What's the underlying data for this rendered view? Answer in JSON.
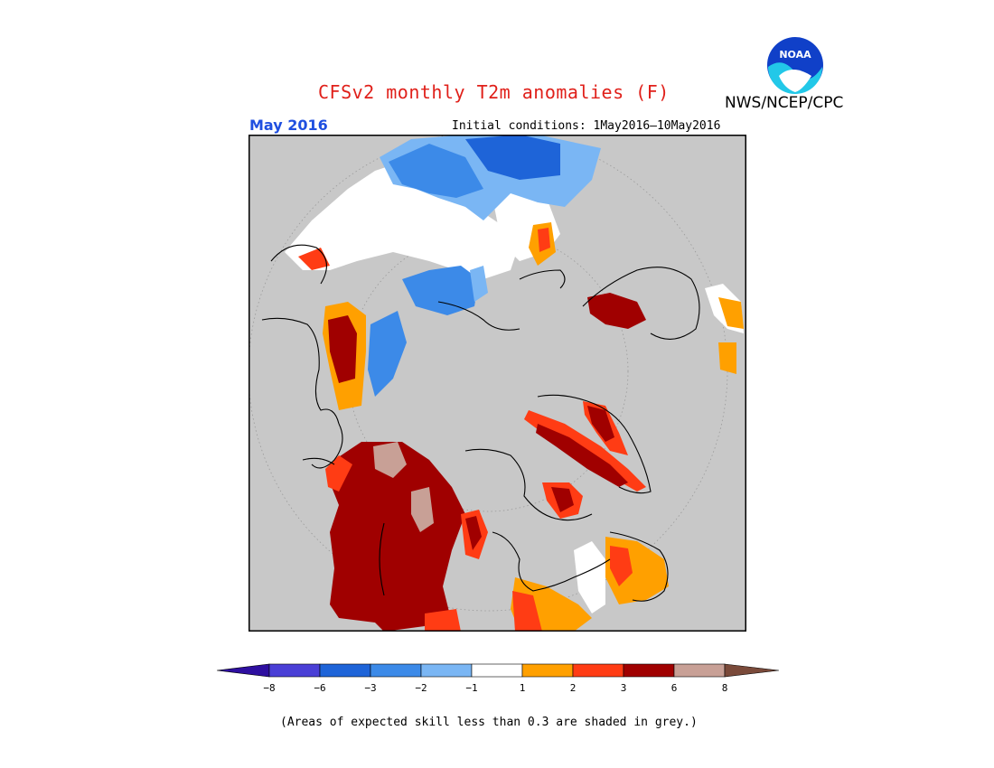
{
  "header": {
    "title": "CFSv2 monthly T2m anomalies (F)",
    "agency": "NWS/NCEP/CPC",
    "logo_text": "NOAA",
    "month": "May 2016",
    "initial_conditions": "Initial conditions: 1May2016—10May2016"
  },
  "colorbar": {
    "tick_labels": [
      "-8",
      "-6",
      "-3",
      "-2",
      "-1",
      "1",
      "2",
      "3",
      "6",
      "8"
    ],
    "colors": [
      "#2e0fa0",
      "#4a3fd6",
      "#1e64d8",
      "#3c8ae8",
      "#7ab6f4",
      "#ffffff",
      "#ffa000",
      "#ff3c14",
      "#a00000",
      "#c8a096",
      "#7a4a3a"
    ]
  },
  "map": {
    "background": "#c8c8c8",
    "projection": "polar stereographic"
  },
  "footnote": "(Areas of expected skill less than 0.3 are shaded in grey.)"
}
